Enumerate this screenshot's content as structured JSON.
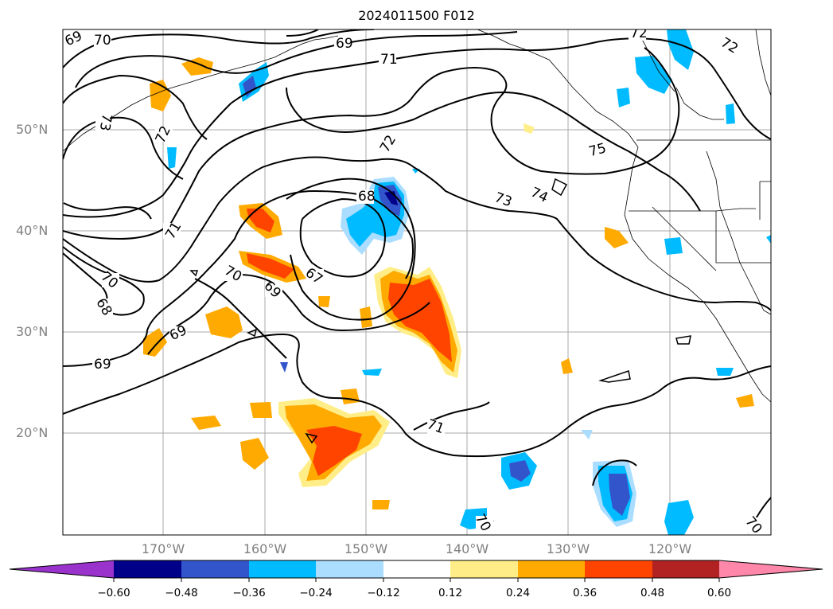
{
  "title": "2024011500 F012",
  "lat_labels": [
    "50°N",
    "40°N",
    "30°N",
    "20°N"
  ],
  "lon_labels": [
    "170°W",
    "160°W",
    "150°W",
    "140°W",
    "130°W",
    "120°W"
  ],
  "contour_labels": [
    {
      "text": "69"
    },
    {
      "text": "70"
    },
    {
      "text": "69"
    },
    {
      "text": "71"
    },
    {
      "text": "72"
    },
    {
      "text": "72"
    },
    {
      "text": "73"
    },
    {
      "text": "72"
    },
    {
      "text": "72"
    },
    {
      "text": "68"
    },
    {
      "text": "73"
    },
    {
      "text": "74"
    },
    {
      "text": "75"
    },
    {
      "text": "71"
    },
    {
      "text": "70"
    },
    {
      "text": "68"
    },
    {
      "text": "70"
    },
    {
      "text": "69"
    },
    {
      "text": "67"
    },
    {
      "text": "69"
    },
    {
      "text": "69"
    },
    {
      "text": "71"
    },
    {
      "text": "70"
    },
    {
      "text": "70"
    }
  ],
  "colorbar": {
    "ticks": [
      "−0.60",
      "−0.48",
      "−0.36",
      "−0.24",
      "−0.12",
      "0.12",
      "0.24",
      "0.36",
      "0.48",
      "0.60"
    ],
    "colors": [
      "#9933cc",
      "#000088",
      "#3355cc",
      "#00bbff",
      "#aaddff",
      "#ffffff",
      "#ffee88",
      "#ffaa00",
      "#ff4400",
      "#b22222",
      "#ff88aa"
    ]
  }
}
